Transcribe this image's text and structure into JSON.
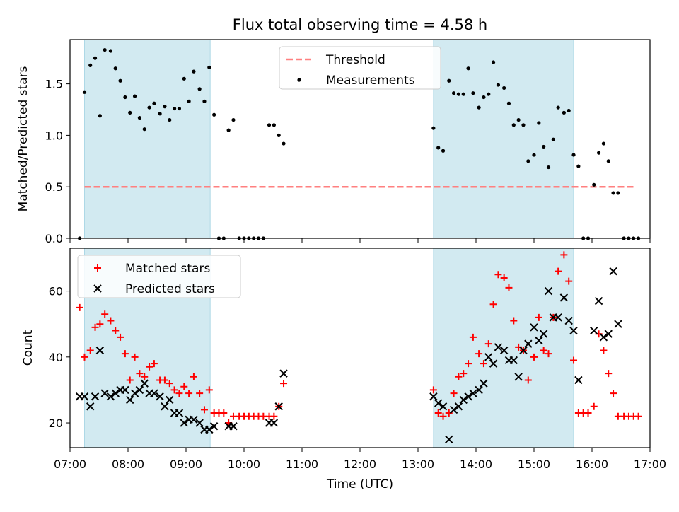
{
  "figure": {
    "title": "Flux total observing time = 4.58 h",
    "xlabel": "Time (UTC)"
  },
  "chart_data": [
    {
      "type": "scatter",
      "title": "Flux total observing time = 4.58 h",
      "xlabel": "",
      "ylabel": "Matched/Predicted stars",
      "xlim": [
        "07:00",
        "17:00"
      ],
      "ylim": [
        0,
        1.93
      ],
      "yticks": [
        0.0,
        0.5,
        1.0,
        1.5
      ],
      "ytick_labels": [
        "0.0",
        "0.5",
        "1.0",
        "1.5"
      ],
      "shaded_intervals": [
        [
          "07:15",
          "09:25"
        ],
        [
          "13:16",
          "15:41"
        ]
      ],
      "shade_color": "#add8e6",
      "legend": {
        "placement": "upper center",
        "entries": [
          "Threshold",
          "Measurements"
        ]
      },
      "threshold": {
        "name": "Threshold",
        "y": 0.5,
        "x_range": [
          "07:15",
          "16:45"
        ],
        "color": "#ff8080"
      },
      "series": [
        {
          "name": "Measurements",
          "marker": "dot",
          "color": "#000000",
          "points": [
            [
              "07:10",
              0.0
            ],
            [
              "07:15",
              1.42
            ],
            [
              "07:21",
              1.68
            ],
            [
              "07:26",
              1.75
            ],
            [
              "07:31",
              1.19
            ],
            [
              "07:36",
              1.83
            ],
            [
              "07:42",
              1.82
            ],
            [
              "07:47",
              1.65
            ],
            [
              "07:52",
              1.53
            ],
            [
              "07:57",
              1.37
            ],
            [
              "08:02",
              1.22
            ],
            [
              "08:07",
              1.38
            ],
            [
              "08:12",
              1.17
            ],
            [
              "08:17",
              1.06
            ],
            [
              "08:22",
              1.27
            ],
            [
              "08:27",
              1.31
            ],
            [
              "08:33",
              1.21
            ],
            [
              "08:38",
              1.28
            ],
            [
              "08:43",
              1.15
            ],
            [
              "08:48",
              1.26
            ],
            [
              "08:53",
              1.26
            ],
            [
              "08:58",
              1.55
            ],
            [
              "09:03",
              1.33
            ],
            [
              "09:08",
              1.62
            ],
            [
              "09:14",
              1.45
            ],
            [
              "09:19",
              1.33
            ],
            [
              "09:24",
              1.66
            ],
            [
              "09:29",
              1.2
            ],
            [
              "09:34",
              0.0
            ],
            [
              "09:39",
              0.0
            ],
            [
              "09:44",
              1.05
            ],
            [
              "09:49",
              1.15
            ],
            [
              "09:55",
              0.0
            ],
            [
              "10:00",
              0.0
            ],
            [
              "10:05",
              0.0
            ],
            [
              "10:10",
              0.0
            ],
            [
              "10:15",
              0.0
            ],
            [
              "10:20",
              0.0
            ],
            [
              "10:26",
              1.1
            ],
            [
              "10:31",
              1.1
            ],
            [
              "10:36",
              1.0
            ],
            [
              "10:41",
              0.92
            ],
            [
              "13:16",
              1.07
            ],
            [
              "13:21",
              0.88
            ],
            [
              "13:26",
              0.85
            ],
            [
              "13:32",
              1.53
            ],
            [
              "13:37",
              1.41
            ],
            [
              "13:42",
              1.4
            ],
            [
              "13:47",
              1.4
            ],
            [
              "13:52",
              1.65
            ],
            [
              "13:57",
              1.41
            ],
            [
              "14:03",
              1.27
            ],
            [
              "14:08",
              1.37
            ],
            [
              "14:13",
              1.4
            ],
            [
              "14:18",
              1.71
            ],
            [
              "14:23",
              1.49
            ],
            [
              "14:29",
              1.46
            ],
            [
              "14:34",
              1.31
            ],
            [
              "14:39",
              1.1
            ],
            [
              "14:44",
              1.15
            ],
            [
              "14:49",
              1.1
            ],
            [
              "14:54",
              0.75
            ],
            [
              "15:00",
              0.81
            ],
            [
              "15:05",
              1.12
            ],
            [
              "15:10",
              0.89
            ],
            [
              "15:15",
              0.69
            ],
            [
              "15:20",
              0.96
            ],
            [
              "15:25",
              1.27
            ],
            [
              "15:31",
              1.22
            ],
            [
              "15:36",
              1.24
            ],
            [
              "15:41",
              0.81
            ],
            [
              "15:46",
              0.7
            ],
            [
              "15:51",
              0.0
            ],
            [
              "15:56",
              0.0
            ],
            [
              "16:02",
              0.52
            ],
            [
              "16:07",
              0.83
            ],
            [
              "16:12",
              0.92
            ],
            [
              "16:17",
              0.75
            ],
            [
              "16:22",
              0.44
            ],
            [
              "16:27",
              0.44
            ],
            [
              "16:33",
              0.0
            ],
            [
              "16:38",
              0.0
            ],
            [
              "16:43",
              0.0
            ],
            [
              "16:48",
              0.0
            ]
          ]
        }
      ]
    },
    {
      "type": "scatter",
      "title": "",
      "xlabel": "Time (UTC)",
      "ylabel": "Count",
      "xlim": [
        "07:00",
        "17:00"
      ],
      "ylim": [
        12.5,
        73
      ],
      "xticks": [
        "07:00",
        "08:00",
        "09:00",
        "10:00",
        "11:00",
        "12:00",
        "13:00",
        "14:00",
        "15:00",
        "16:00",
        "17:00"
      ],
      "yticks": [
        20,
        40,
        60
      ],
      "ytick_labels": [
        "20",
        "40",
        "60"
      ],
      "shaded_intervals": [
        [
          "07:15",
          "09:25"
        ],
        [
          "13:16",
          "15:41"
        ]
      ],
      "shade_color": "#add8e6",
      "legend": {
        "placement": "upper left",
        "entries": [
          "Matched stars",
          "Predicted stars"
        ]
      },
      "series": [
        {
          "name": "Matched stars",
          "marker": "plus",
          "color": "#ff0000",
          "points": [
            [
              "07:10",
              55
            ],
            [
              "07:15",
              40
            ],
            [
              "07:21",
              42
            ],
            [
              "07:26",
              49
            ],
            [
              "07:31",
              50
            ],
            [
              "07:36",
              53
            ],
            [
              "07:42",
              51
            ],
            [
              "07:47",
              48
            ],
            [
              "07:52",
              46
            ],
            [
              "07:57",
              41
            ],
            [
              "08:02",
              33
            ],
            [
              "08:07",
              40
            ],
            [
              "08:12",
              35
            ],
            [
              "08:17",
              34
            ],
            [
              "08:22",
              37
            ],
            [
              "08:27",
              38
            ],
            [
              "08:33",
              33
            ],
            [
              "08:38",
              33
            ],
            [
              "08:43",
              32
            ],
            [
              "08:48",
              30
            ],
            [
              "08:53",
              29
            ],
            [
              "08:58",
              31
            ],
            [
              "09:03",
              29
            ],
            [
              "09:08",
              34
            ],
            [
              "09:14",
              29
            ],
            [
              "09:19",
              24
            ],
            [
              "09:24",
              30
            ],
            [
              "09:29",
              23
            ],
            [
              "09:34",
              23
            ],
            [
              "09:39",
              23
            ],
            [
              "09:44",
              20
            ],
            [
              "09:49",
              22
            ],
            [
              "09:55",
              22
            ],
            [
              "10:00",
              22
            ],
            [
              "10:05",
              22
            ],
            [
              "10:10",
              22
            ],
            [
              "10:15",
              22
            ],
            [
              "10:20",
              22
            ],
            [
              "10:26",
              22
            ],
            [
              "10:31",
              22
            ],
            [
              "10:36",
              25
            ],
            [
              "10:41",
              32
            ],
            [
              "13:16",
              30
            ],
            [
              "13:21",
              23
            ],
            [
              "13:26",
              22
            ],
            [
              "13:32",
              23
            ],
            [
              "13:37",
              29
            ],
            [
              "13:42",
              34
            ],
            [
              "13:47",
              35
            ],
            [
              "13:52",
              38
            ],
            [
              "13:57",
              46
            ],
            [
              "14:03",
              41
            ],
            [
              "14:08",
              38
            ],
            [
              "14:13",
              44
            ],
            [
              "14:18",
              56
            ],
            [
              "14:23",
              65
            ],
            [
              "14:29",
              64
            ],
            [
              "14:34",
              61
            ],
            [
              "14:39",
              51
            ],
            [
              "14:44",
              43
            ],
            [
              "14:49",
              42
            ],
            [
              "14:54",
              33
            ],
            [
              "15:00",
              40
            ],
            [
              "15:05",
              52
            ],
            [
              "15:10",
              42
            ],
            [
              "15:15",
              41
            ],
            [
              "15:20",
              52
            ],
            [
              "15:25",
              66
            ],
            [
              "15:31",
              71
            ],
            [
              "15:36",
              63
            ],
            [
              "15:41",
              39
            ],
            [
              "15:46",
              23
            ],
            [
              "15:51",
              23
            ],
            [
              "15:56",
              23
            ],
            [
              "16:02",
              25
            ],
            [
              "16:07",
              47
            ],
            [
              "16:12",
              42
            ],
            [
              "16:17",
              35
            ],
            [
              "16:22",
              29
            ],
            [
              "16:27",
              22
            ],
            [
              "16:33",
              22
            ],
            [
              "16:38",
              22
            ],
            [
              "16:43",
              22
            ],
            [
              "16:48",
              22
            ]
          ]
        },
        {
          "name": "Predicted stars",
          "marker": "x",
          "color": "#000000",
          "points": [
            [
              "07:10",
              28
            ],
            [
              "07:15",
              28
            ],
            [
              "07:21",
              25
            ],
            [
              "07:26",
              28
            ],
            [
              "07:31",
              42
            ],
            [
              "07:36",
              29
            ],
            [
              "07:42",
              28
            ],
            [
              "07:47",
              29
            ],
            [
              "07:52",
              30
            ],
            [
              "07:57",
              30
            ],
            [
              "08:02",
              27
            ],
            [
              "08:07",
              29
            ],
            [
              "08:12",
              30
            ],
            [
              "08:17",
              32
            ],
            [
              "08:22",
              29
            ],
            [
              "08:27",
              29
            ],
            [
              "08:33",
              28
            ],
            [
              "08:38",
              25
            ],
            [
              "08:43",
              27
            ],
            [
              "08:48",
              23
            ],
            [
              "08:53",
              23
            ],
            [
              "08:58",
              20
            ],
            [
              "09:03",
              21
            ],
            [
              "09:08",
              21
            ],
            [
              "09:14",
              20
            ],
            [
              "09:19",
              18
            ],
            [
              "09:24",
              18
            ],
            [
              "09:29",
              19
            ],
            [
              "09:44",
              19
            ],
            [
              "09:49",
              19
            ],
            [
              "10:26",
              20
            ],
            [
              "10:31",
              20
            ],
            [
              "10:36",
              25
            ],
            [
              "10:41",
              35
            ],
            [
              "13:16",
              28
            ],
            [
              "13:21",
              26
            ],
            [
              "13:26",
              25
            ],
            [
              "13:32",
              15
            ],
            [
              "13:37",
              24
            ],
            [
              "13:42",
              25
            ],
            [
              "13:47",
              27
            ],
            [
              "13:52",
              28
            ],
            [
              "13:57",
              29
            ],
            [
              "14:03",
              30
            ],
            [
              "14:08",
              32
            ],
            [
              "14:13",
              40
            ],
            [
              "14:18",
              38
            ],
            [
              "14:23",
              43
            ],
            [
              "14:29",
              42
            ],
            [
              "14:34",
              39
            ],
            [
              "14:39",
              39
            ],
            [
              "14:44",
              34
            ],
            [
              "14:49",
              42
            ],
            [
              "14:54",
              44
            ],
            [
              "15:00",
              49
            ],
            [
              "15:05",
              45
            ],
            [
              "15:10",
              47
            ],
            [
              "15:15",
              60
            ],
            [
              "15:20",
              52
            ],
            [
              "15:25",
              52
            ],
            [
              "15:31",
              58
            ],
            [
              "15:36",
              51
            ],
            [
              "15:41",
              48
            ],
            [
              "15:46",
              33
            ],
            [
              "16:02",
              48
            ],
            [
              "16:07",
              57
            ],
            [
              "16:12",
              46
            ],
            [
              "16:17",
              47
            ],
            [
              "16:22",
              66
            ],
            [
              "16:27",
              50
            ]
          ]
        }
      ]
    }
  ]
}
